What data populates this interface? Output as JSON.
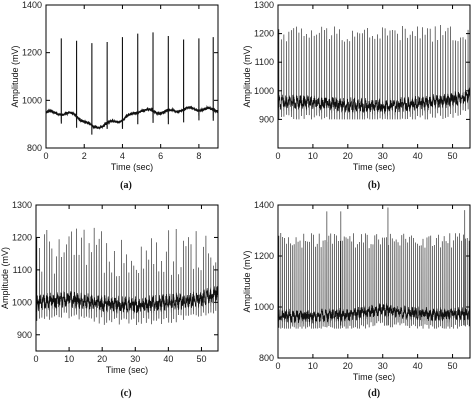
{
  "chart_data": [
    {
      "type": "line",
      "panel_label": "(a)",
      "xlabel": "Time (sec)",
      "ylabel": "Amplitude (mV)",
      "xlim": [
        0,
        9
      ],
      "ylim": [
        800,
        1400
      ],
      "xticks": [
        0,
        2,
        4,
        6,
        8
      ],
      "yticks": [
        800,
        1000,
        1200,
        1400
      ],
      "signal": {
        "duration_sec": 9,
        "beat_times_sec": [
          0.8,
          1.6,
          2.4,
          3.2,
          4.0,
          4.8,
          5.6,
          6.4,
          7.2,
          8.0,
          8.75
        ],
        "peak_mV": [
          1260,
          1250,
          1240,
          1245,
          1265,
          1280,
          1285,
          1270,
          1255,
          1260,
          1265
        ],
        "baseline_mV": [
          [
            0,
            950
          ],
          [
            1.5,
            940
          ],
          [
            2.5,
            885
          ],
          [
            4,
            920
          ],
          [
            5,
            960
          ],
          [
            6,
            950
          ],
          [
            7.5,
            965
          ],
          [
            9,
            960
          ]
        ],
        "trough_mV": 880
      }
    },
    {
      "type": "line",
      "panel_label": "(b)",
      "xlabel": "Time (sec)",
      "ylabel": "Amplitude (mV)",
      "xlim": [
        0,
        55
      ],
      "ylim": [
        800,
        1300
      ],
      "xticks": [
        0,
        10,
        20,
        30,
        40,
        50
      ],
      "yticks": [
        900,
        1000,
        1100,
        1200,
        1300
      ],
      "signal": {
        "duration_sec": 55,
        "beat_interval_sec": 0.72,
        "peak_range_mV": [
          1170,
          1230
        ],
        "baseline_mV": [
          [
            0,
            960
          ],
          [
            10,
            960
          ],
          [
            20,
            950
          ],
          [
            30,
            945
          ],
          [
            40,
            955
          ],
          [
            50,
            970
          ],
          [
            55,
            985
          ]
        ],
        "trough_mV": 900
      }
    },
    {
      "type": "line",
      "panel_label": "(c)",
      "xlabel": "Time (sec)",
      "ylabel": "Amplitude (mV)",
      "xlim": [
        0,
        55
      ],
      "ylim": [
        850,
        1300
      ],
      "xticks": [
        0,
        10,
        20,
        30,
        40,
        50
      ],
      "yticks": [
        900,
        1000,
        1100,
        1200,
        1300
      ],
      "signal": {
        "duration_sec": 55,
        "beat_interval_sec": 0.75,
        "peak_range_mV": [
          1080,
          1230
        ],
        "baseline_mV": [
          [
            0,
            1000
          ],
          [
            10,
            1010
          ],
          [
            20,
            995
          ],
          [
            30,
            990
          ],
          [
            40,
            1000
          ],
          [
            50,
            1010
          ],
          [
            55,
            1030
          ]
        ],
        "trough_mV": 930
      }
    },
    {
      "type": "line",
      "panel_label": "(d)",
      "xlabel": "Time (sec)",
      "ylabel": "Amplitude (mV)",
      "xlim": [
        0,
        55
      ],
      "ylim": [
        800,
        1400
      ],
      "xticks": [
        0,
        10,
        20,
        30,
        40,
        50
      ],
      "yticks": [
        800,
        1000,
        1200,
        1400
      ],
      "signal": {
        "duration_sec": 55,
        "beat_interval_sec": 0.55,
        "peak_range_mV": [
          1230,
          1290
        ],
        "tall_spikes": [
          [
            14,
            1375
          ],
          [
            18,
            1375
          ],
          [
            31.5,
            1390
          ],
          [
            53.5,
            1380
          ]
        ],
        "baseline_mV": [
          [
            0,
            965
          ],
          [
            10,
            965
          ],
          [
            20,
            970
          ],
          [
            30,
            990
          ],
          [
            35,
            980
          ],
          [
            45,
            970
          ],
          [
            55,
            975
          ]
        ],
        "trough_mV": 915
      }
    }
  ]
}
